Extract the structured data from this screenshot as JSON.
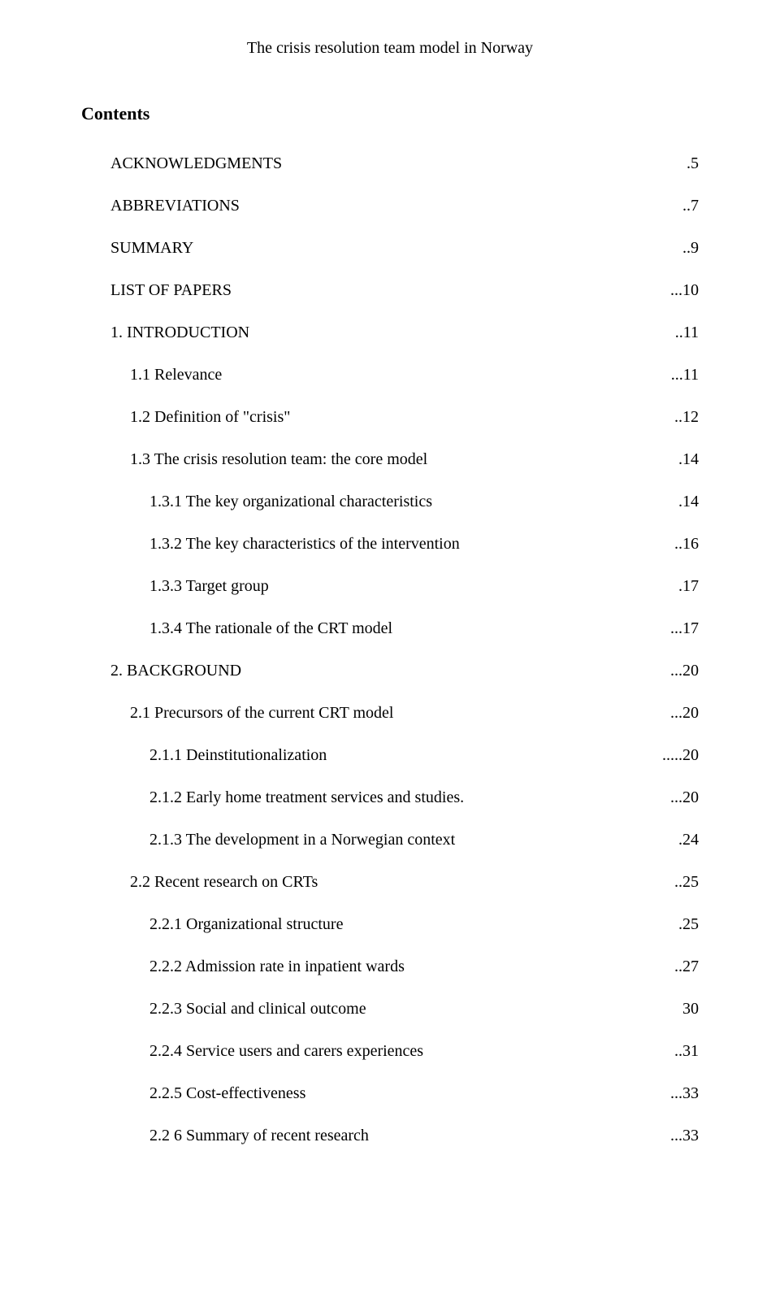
{
  "running_head": "The crisis resolution team model in Norway",
  "contents_title": "Contents",
  "toc": [
    {
      "label": "ACKNOWLEDGMENTS",
      "page": ".5",
      "indent": 1
    },
    {
      "label": "ABBREVIATIONS ",
      "page": "..7",
      "indent": 1
    },
    {
      "label": "SUMMARY ",
      "page": "..9",
      "indent": 1
    },
    {
      "label": "LIST OF PAPERS ",
      "page": "...10",
      "indent": 1
    },
    {
      "label": "1. INTRODUCTION",
      "page": "..11",
      "indent": 1
    },
    {
      "label": "1.1 Relevance",
      "page": "...11",
      "indent": 2
    },
    {
      "label": "1.2 Definition of \"crisis\"",
      "page": "..12",
      "indent": 2
    },
    {
      "label": "1.3 The crisis resolution team: the core model",
      "page": ".14",
      "indent": 2
    },
    {
      "label": "1.3.1 The key organizational characteristics",
      "page": ".14",
      "indent": 3
    },
    {
      "label": "1.3.2 The key characteristics of the intervention",
      "page": "..16",
      "indent": 3
    },
    {
      "label": "1.3.3 Target group",
      "page": ".17",
      "indent": 3
    },
    {
      "label": "1.3.4 The rationale of the CRT model",
      "page": "...17",
      "indent": 3
    },
    {
      "label": "2. BACKGROUND",
      "page": "...20",
      "indent": 1
    },
    {
      "label": "2.1 Precursors of the current CRT model",
      "page": "...20",
      "indent": 2
    },
    {
      "label": "2.1.1 Deinstitutionalization",
      "page": ".....20",
      "indent": 3
    },
    {
      "label": "2.1.2 Early home treatment services and studies.",
      "page": "...20",
      "indent": 3
    },
    {
      "label": "2.1.3 The development in a Norwegian context",
      "page": ".24",
      "indent": 3
    },
    {
      "label": "2.2 Recent research on CRTs",
      "page": "..25",
      "indent": 2
    },
    {
      "label": "2.2.1 Organizational structure",
      "page": ".25",
      "indent": 3
    },
    {
      "label": "2.2.2 Admission rate in inpatient wards",
      "page": "..27",
      "indent": 3
    },
    {
      "label": "2.2.3 Social and clinical outcome",
      "page": "30",
      "indent": 3
    },
    {
      "label": "2.2.4 Service users and carers experiences",
      "page": "..31",
      "indent": 3
    },
    {
      "label": "2.2.5 Cost-effectiveness",
      "page": "...33",
      "indent": 3
    },
    {
      "label": "2.2 6 Summary of recent research",
      "page": "...33",
      "indent": 3
    }
  ]
}
